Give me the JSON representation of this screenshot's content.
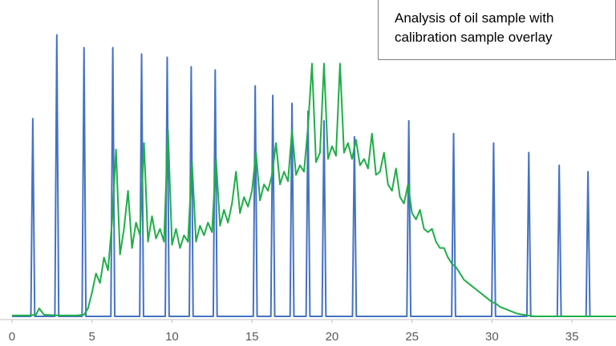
{
  "chart_data": {
    "type": "line",
    "title": "Analysis of oil sample with calibration sample overlay",
    "xlim": [
      -0.75,
      37.75
    ],
    "xticks": [
      0,
      5,
      10,
      15,
      20,
      25,
      30,
      35
    ],
    "ylim": [
      0,
      100
    ],
    "series": [
      {
        "color": "#4472c4",
        "x": [
          0,
          1.18,
          1.3,
          1.42,
          2.68,
          2.8,
          2.92,
          4.38,
          4.5,
          4.62,
          6.18,
          6.3,
          6.42,
          7.98,
          8.1,
          8.22,
          9.58,
          9.7,
          9.82,
          11.08,
          11.2,
          11.32,
          12.58,
          12.7,
          12.82,
          15.08,
          15.2,
          15.32,
          16.18,
          16.3,
          16.42,
          17.38,
          17.5,
          17.62,
          18.38,
          18.5,
          18.62,
          19.38,
          19.5,
          19.62,
          21.28,
          21.4,
          21.52,
          24.68,
          24.8,
          24.92,
          27.48,
          27.6,
          27.72,
          29.98,
          30.1,
          30.22,
          32.18,
          32.3,
          32.42,
          34.08,
          34.2,
          34.32,
          35.88,
          36,
          36.12,
          37.75
        ],
        "values": [
          0.5,
          0.5,
          62.7,
          0.5,
          0.5,
          89,
          0.5,
          0.5,
          85,
          0.5,
          0.5,
          85,
          0.5,
          0.5,
          83,
          0.5,
          0.5,
          82,
          0.5,
          0.5,
          79,
          0.5,
          0.5,
          78,
          0.5,
          0.5,
          73,
          0.5,
          0.5,
          70,
          0.5,
          0.5,
          67.5,
          0.5,
          0.5,
          65,
          0.5,
          0.5,
          62,
          0.5,
          0.5,
          57,
          0.5,
          0.5,
          62,
          0.5,
          0.5,
          58,
          0.5,
          0.5,
          55,
          0.5,
          0.5,
          52,
          0.5,
          0.5,
          48,
          0.5,
          0.5,
          46,
          0.5,
          0.5
        ]
      },
      {
        "color": "#1fae48",
        "x": [
          0,
          1,
          1.5,
          1.7,
          2,
          3,
          4,
          4.5,
          4.75,
          5,
          5.25,
          5.5,
          5.75,
          6,
          6.25,
          6.5,
          6.75,
          7,
          7.25,
          7.5,
          7.75,
          8,
          8.25,
          8.5,
          8.75,
          9,
          9.25,
          9.5,
          9.75,
          10,
          10.25,
          10.5,
          10.75,
          11,
          11.25,
          11.5,
          11.75,
          12,
          12.25,
          12.5,
          12.75,
          13,
          13.25,
          13.5,
          13.75,
          14,
          14.25,
          14.5,
          14.75,
          15,
          15.25,
          15.5,
          15.75,
          16,
          16.25,
          16.5,
          16.75,
          17,
          17.25,
          17.5,
          17.75,
          18,
          18.25,
          18.5,
          18.75,
          19,
          19.25,
          19.5,
          19.75,
          20,
          20.25,
          20.5,
          20.75,
          21,
          21.25,
          21.5,
          21.75,
          22,
          22.25,
          22.5,
          22.75,
          23,
          23.25,
          23.5,
          23.75,
          24,
          24.25,
          24.5,
          24.75,
          25,
          25.25,
          25.5,
          25.75,
          26,
          26.25,
          26.5,
          26.75,
          27,
          27.25,
          27.5,
          27.75,
          28,
          28.25,
          28.5,
          28.75,
          29,
          29.25,
          29.5,
          29.75,
          30,
          30.25,
          30.5,
          30.75,
          31,
          31.25,
          31.5,
          31.75,
          32,
          32.25,
          32.5,
          32.75,
          33,
          34,
          35,
          36,
          37.75
        ],
        "values": [
          0.8,
          0.8,
          1,
          3,
          1,
          0.8,
          0.8,
          1,
          3,
          8,
          14,
          11,
          19,
          15,
          30,
          53,
          20,
          28,
          40,
          22,
          30,
          26,
          55,
          24,
          32,
          25,
          28,
          24,
          59,
          23,
          28,
          22,
          26,
          24,
          49,
          24,
          29,
          26,
          30,
          27,
          50,
          29,
          34,
          30,
          36,
          46,
          33,
          38,
          35,
          40,
          52,
          37,
          42,
          40,
          45,
          55,
          42,
          46,
          43,
          59,
          45,
          48,
          46,
          60,
          80,
          49,
          52,
          80,
          50,
          54,
          51,
          80,
          52,
          55,
          50,
          56,
          48,
          50,
          47,
          58,
          45,
          46,
          52,
          42,
          40,
          47,
          38,
          36,
          42,
          33,
          31,
          34,
          28,
          27,
          28,
          24,
          22,
          22,
          19,
          17,
          16,
          14,
          12,
          11,
          10,
          9,
          8,
          7,
          6,
          5,
          4.5,
          3.5,
          3,
          2.5,
          2,
          1.5,
          1.2,
          1,
          0.8,
          0.6,
          0.5,
          0.5,
          0.5,
          0.5,
          0.5,
          0.5
        ]
      }
    ]
  }
}
